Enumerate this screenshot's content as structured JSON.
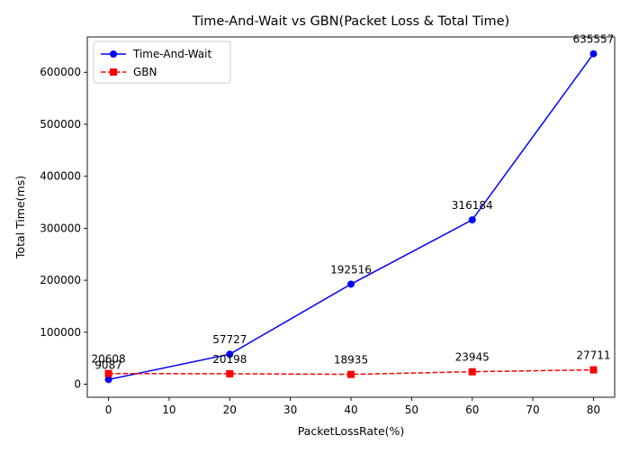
{
  "chart_data": {
    "type": "line",
    "title": "Time-And-Wait vs GBN(Packet Loss & Total Time)",
    "xlabel": "PacketLossRate(%)",
    "ylabel": "Total Time(ms)",
    "x": [
      0,
      20,
      40,
      60,
      80
    ],
    "xlim": [
      -3.5,
      83.5
    ],
    "ylim": [
      -25000,
      668000
    ],
    "x_ticks": [
      0,
      10,
      20,
      30,
      40,
      50,
      60,
      70,
      80
    ],
    "y_ticks": [
      0,
      100000,
      200000,
      300000,
      400000,
      500000,
      600000
    ],
    "grid": false,
    "legend_position": "upper-left",
    "series": [
      {
        "name": "Time-And-Wait",
        "values": [
          9087,
          57727,
          192516,
          316184,
          635557
        ],
        "color": "#0000ff",
        "marker": "circle",
        "linestyle": "solid"
      },
      {
        "name": "GBN",
        "values": [
          20608,
          20198,
          18935,
          23945,
          27711
        ],
        "color": "#ff0000",
        "marker": "square",
        "linestyle": "dashed"
      }
    ]
  }
}
